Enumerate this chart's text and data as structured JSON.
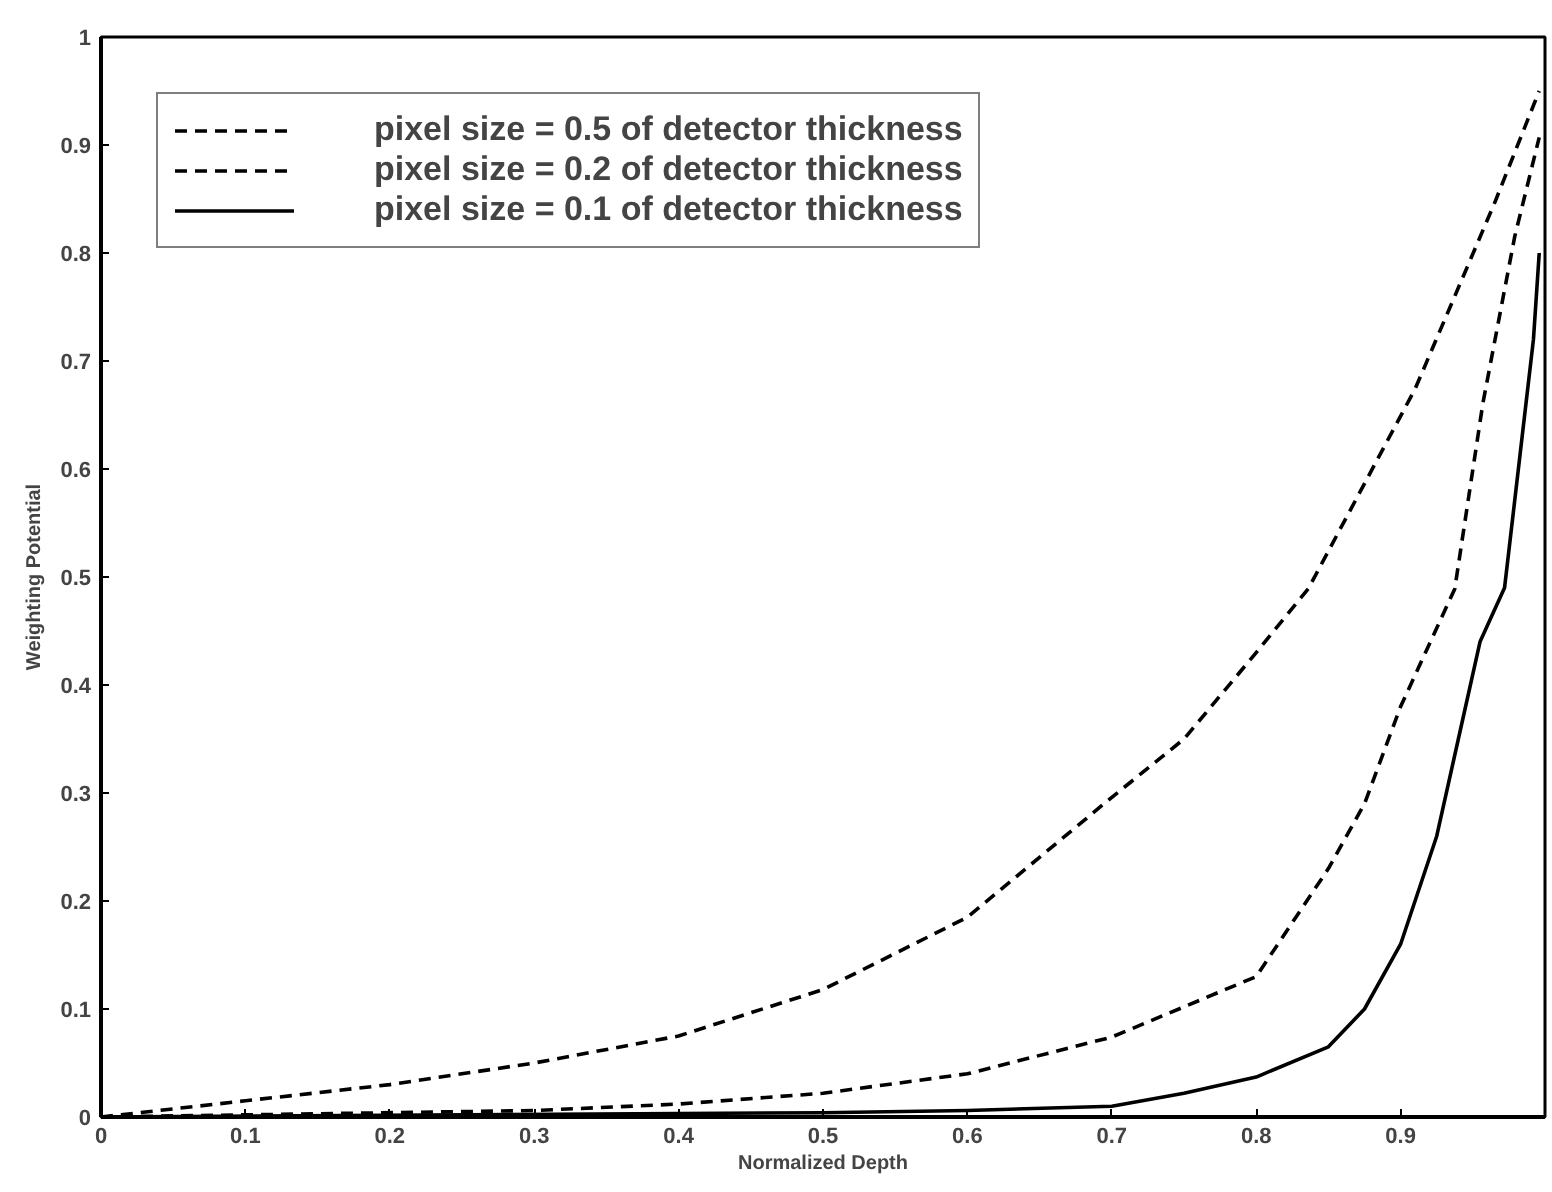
{
  "chart_data": {
    "type": "line",
    "xlabel": "Normalized Depth",
    "ylabel": "Weighting Potential",
    "xlim": [
      0,
      1
    ],
    "ylim": [
      0,
      1
    ],
    "xticks": [
      0,
      0.1,
      0.2,
      0.3,
      0.4,
      0.5,
      0.6,
      0.7,
      0.8,
      0.9,
      {
        "value": 1,
        "label": null
      }
    ],
    "yticks": [
      0,
      0.1,
      0.2,
      0.3,
      0.4,
      0.5,
      0.6,
      0.7,
      0.8,
      0.9,
      1
    ],
    "grid": false,
    "legend": "top left",
    "marker": "none",
    "series": [
      {
        "name": "pixel size = 0.5 of detector thickness",
        "color": "#000000",
        "line_style": "dashed",
        "x": [
          0,
          0.1,
          0.2,
          0.3,
          0.4,
          0.5,
          0.6,
          0.7,
          0.75,
          0.8,
          0.836,
          0.91,
          0.965,
          0.996
        ],
        "values": [
          0,
          0.015,
          0.03,
          0.05,
          0.075,
          0.118,
          0.185,
          0.296,
          0.35,
          0.43,
          0.489,
          0.674,
          0.846,
          0.95
        ]
      },
      {
        "name": "pixel size = 0.2 of detector thickness",
        "color": "#000000",
        "line_style": "dashed",
        "x": [
          0,
          0.1,
          0.3,
          0.4,
          0.5,
          0.6,
          0.7,
          0.8,
          0.85,
          0.875,
          0.9,
          0.9375,
          0.957,
          0.979,
          0.996
        ],
        "values": [
          0,
          0.002,
          0.006,
          0.012,
          0.022,
          0.04,
          0.074,
          0.13,
          0.23,
          0.29,
          0.38,
          0.489,
          0.661,
          0.815,
          0.907
        ]
      },
      {
        "name": "pixel size = 0.1 of detector thickness",
        "color": "#000000",
        "line_style": "solid",
        "x": [
          0,
          0.5,
          0.6,
          0.7,
          0.75,
          0.8,
          0.85,
          0.875,
          0.9,
          0.925,
          0.94,
          0.955,
          0.972,
          0.992,
          0.996
        ],
        "values": [
          0,
          0.004,
          0.006,
          0.01,
          0.022,
          0.037,
          0.065,
          0.1,
          0.16,
          0.26,
          0.35,
          0.44,
          0.49,
          0.72,
          0.8
        ]
      }
    ]
  }
}
